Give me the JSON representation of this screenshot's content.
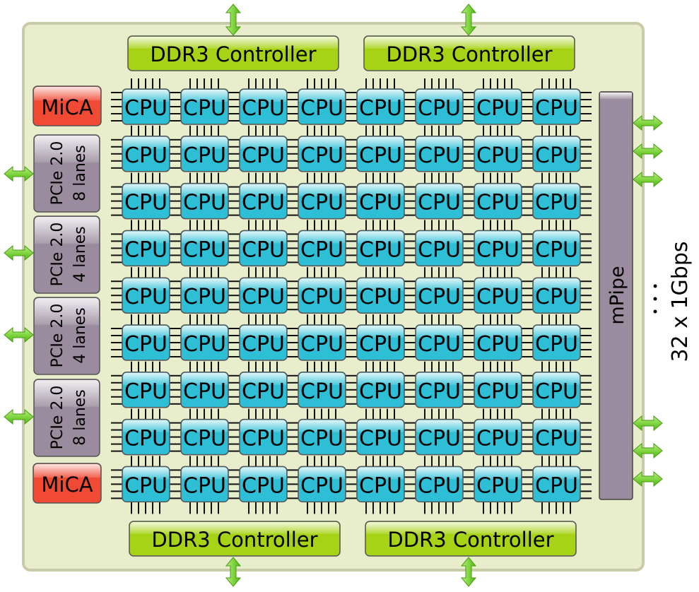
{
  "colors": {
    "board": "#e8edcc",
    "cpu": "#2ebfd6",
    "ddr": "#a6d316",
    "mica": "#f04a35",
    "pcie": "#9a8c9e",
    "arrow": "#6fd31e"
  },
  "ddr_label": "DDR3 Controller",
  "cpu_label": "CPU",
  "cpu_grid": {
    "rows": 9,
    "cols": 8
  },
  "mica_label": "MiCA",
  "pcie": [
    {
      "line1": "PCIe 2.0",
      "line2": "8 lanes"
    },
    {
      "line1": "PCIe 2.0",
      "line2": "4 lanes"
    },
    {
      "line1": "PCIe 2.0",
      "line2": "4 lanes"
    },
    {
      "line1": "PCIe 2.0",
      "line2": "8 lanes"
    }
  ],
  "mpipe_label": "mPipe",
  "ports_label": "32 x 1Gbps",
  "icons": {
    "arrow": "double-arrow-icon",
    "ellipsis": "vertical-ellipsis-icon"
  }
}
